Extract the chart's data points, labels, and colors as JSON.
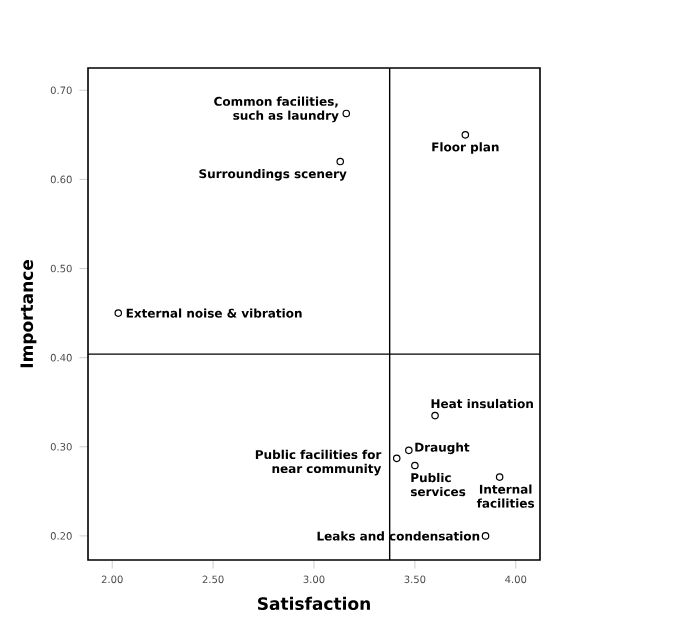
{
  "chart_data": {
    "type": "scatter",
    "xlabel": "Satisfaction",
    "ylabel": "Importance",
    "x": [
      3.16,
      3.13,
      3.75,
      2.03,
      3.6,
      3.47,
      3.41,
      3.5,
      3.92,
      3.85
    ],
    "values": [
      0.674,
      0.62,
      0.65,
      0.45,
      0.335,
      0.296,
      0.287,
      0.279,
      0.266,
      0.2
    ],
    "color": "#000000",
    "marker": "circle",
    "xlim": [
      1.88,
      4.12
    ],
    "ylim": [
      0.173,
      0.725
    ],
    "xticks": [
      {
        "value": 2,
        "label": "2.00"
      },
      {
        "value": 2.5,
        "label": "2.50"
      },
      {
        "value": 3,
        "label": "3.00"
      },
      {
        "value": 3.5,
        "label": "3.50"
      },
      {
        "value": 4,
        "label": "4.00"
      }
    ],
    "yticks": [
      {
        "value": 0.2,
        "label": "0.20"
      },
      {
        "value": 0.3,
        "label": "0.30"
      },
      {
        "value": 0.4,
        "label": "0.40"
      },
      {
        "value": 0.5,
        "label": "0.50"
      },
      {
        "value": 0.6,
        "label": "0.60"
      },
      {
        "value": 0.7,
        "label": "0.70"
      }
    ],
    "ref_lines": [
      {
        "axis": "x",
        "value": 3.375
      },
      {
        "axis": "y",
        "value": 0.404
      }
    ],
    "annotations": [
      {
        "text": "Common facilities, such as laundry",
        "x": 3.16,
        "y": 0.674
      },
      {
        "text": "Surroundings scenery",
        "x": 3.13,
        "y": 0.62
      },
      {
        "text": "Floor plan",
        "x": 3.75,
        "y": 0.65
      },
      {
        "text": "External noise & vibration",
        "x": 2.03,
        "y": 0.45
      },
      {
        "text": "Heat insulation",
        "x": 3.6,
        "y": 0.335
      },
      {
        "text": "Draught",
        "x": 3.47,
        "y": 0.296
      },
      {
        "text": "Public facilities for near community",
        "x": 3.41,
        "y": 0.287
      },
      {
        "text": "Public services",
        "x": 3.5,
        "y": 0.279
      },
      {
        "text": "Internal facilities",
        "x": 3.92,
        "y": 0.266
      },
      {
        "text": "Leaks and condensation",
        "x": 3.85,
        "y": 0.2
      }
    ]
  }
}
